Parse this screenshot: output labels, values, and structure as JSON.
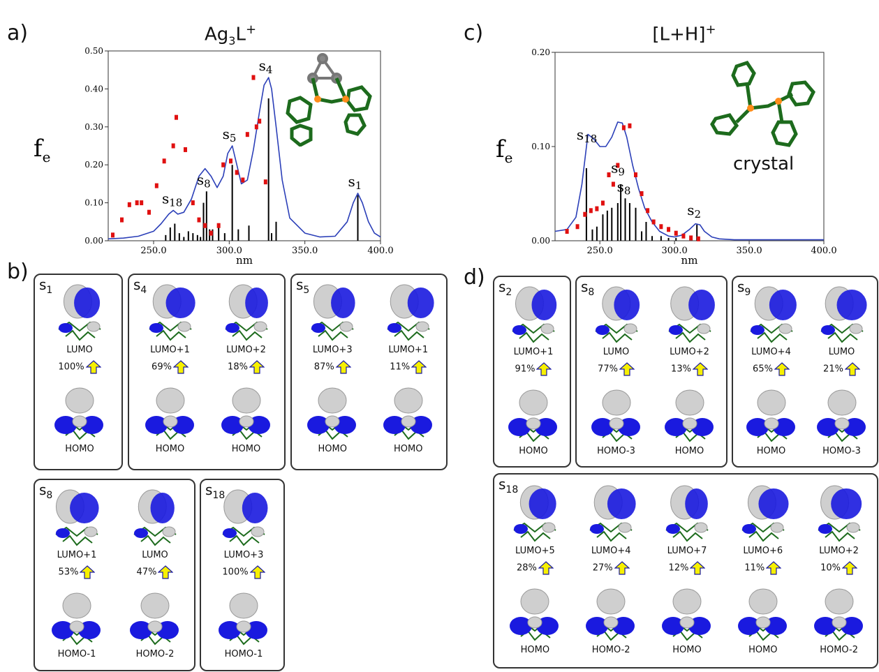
{
  "colors": {
    "curve": "#2b3fb8",
    "sticks": "#000000",
    "points": "#e01010",
    "lobe_blue": "#1a1adf",
    "lobe_gray": "#cfcfcf",
    "arrow": "#f7f000",
    "molecule": "#1d6b1d"
  },
  "panels": {
    "a": {
      "letter": "a)",
      "title": "Ag",
      "title_sub": "3",
      "title_rest": "L",
      "title_sup": "+"
    },
    "b": {
      "letter": "b)"
    },
    "c": {
      "letter": "c)",
      "title": "[L+H]",
      "title_sup": "+",
      "note": "crystal"
    },
    "d": {
      "letter": "d)"
    }
  },
  "chart_data": [
    {
      "type": "line",
      "title": "Ag3L+",
      "xlabel": "nm",
      "ylabel": "f",
      "ylabel_sub": "e",
      "xlim": [
        220,
        400
      ],
      "ylim": [
        0,
        0.5
      ],
      "xticks": [
        "250.0",
        "300.0",
        "350.0",
        "400.0"
      ],
      "xtick_values": [
        250,
        300,
        350,
        400
      ],
      "yticks": [
        "0.00",
        "0.10",
        "0.20",
        "0.30",
        "0.40",
        "0.50"
      ],
      "ytick_values": [
        0,
        0.1,
        0.2,
        0.3,
        0.4,
        0.5
      ],
      "series": [
        {
          "kind": "curve",
          "x": [
            220,
            230,
            240,
            250,
            255,
            260,
            263,
            266,
            270,
            275,
            280,
            284,
            288,
            292,
            296,
            299,
            302,
            305,
            308,
            312,
            316,
            320,
            323,
            326,
            328,
            331,
            335,
            340,
            350,
            360,
            370,
            378,
            382,
            385,
            388,
            392,
            396,
            400
          ],
          "y": [
            0.005,
            0.007,
            0.012,
            0.025,
            0.045,
            0.07,
            0.08,
            0.07,
            0.075,
            0.11,
            0.17,
            0.19,
            0.17,
            0.14,
            0.17,
            0.23,
            0.25,
            0.2,
            0.15,
            0.16,
            0.24,
            0.34,
            0.41,
            0.43,
            0.4,
            0.3,
            0.16,
            0.06,
            0.02,
            0.01,
            0.012,
            0.05,
            0.1,
            0.125,
            0.1,
            0.05,
            0.02,
            0.01
          ]
        },
        {
          "kind": "sticks",
          "x": [
            258,
            261,
            264,
            267,
            270,
            273,
            276,
            279,
            281,
            283,
            285,
            287,
            289,
            293,
            297,
            302,
            306,
            313,
            326,
            328,
            331,
            385
          ],
          "y": [
            0.015,
            0.035,
            0.045,
            0.02,
            0.01,
            0.025,
            0.02,
            0.015,
            0.01,
            0.1,
            0.13,
            0.03,
            0.03,
            0.045,
            0.02,
            0.2,
            0.03,
            0.04,
            0.375,
            0.02,
            0.05,
            0.12
          ]
        },
        {
          "kind": "points",
          "x": [
            223,
            229,
            234,
            239,
            242,
            247,
            252,
            257,
            263,
            265,
            271,
            276,
            280,
            284,
            288,
            293,
            296,
            301,
            305,
            309,
            312,
            316,
            318,
            320,
            324
          ],
          "y": [
            0.015,
            0.055,
            0.095,
            0.1,
            0.1,
            0.075,
            0.145,
            0.21,
            0.25,
            0.325,
            0.24,
            0.1,
            0.055,
            0.04,
            0.02,
            0.04,
            0.2,
            0.21,
            0.18,
            0.16,
            0.28,
            0.43,
            0.3,
            0.315,
            0.155
          ]
        }
      ],
      "annotations": [
        {
          "label": "S",
          "sub": "4",
          "x": 326,
          "y": 0.43
        },
        {
          "label": "S",
          "sub": "5",
          "x": 302,
          "y": 0.25
        },
        {
          "label": "S",
          "sub": "8",
          "x": 285,
          "y": 0.13
        },
        {
          "label": "S",
          "sub": "18",
          "x": 262,
          "y": 0.08
        },
        {
          "label": "S",
          "sub": "1",
          "x": 385,
          "y": 0.125
        }
      ]
    },
    {
      "type": "line",
      "title": "[L+H]+",
      "xlabel": "nm",
      "ylabel": "f",
      "ylabel_sub": "e",
      "xlim": [
        220,
        400
      ],
      "ylim": [
        0,
        0.2
      ],
      "xticks": [
        "250.0",
        "300.0",
        "350.0",
        "400.0"
      ],
      "xtick_values": [
        250,
        300,
        350,
        400
      ],
      "yticks": [
        "0.00",
        "0.10",
        "0.20"
      ],
      "ytick_values": [
        0,
        0.1,
        0.2
      ],
      "series": [
        {
          "kind": "curve",
          "x": [
            220,
            228,
            234,
            238,
            242,
            246,
            250,
            254,
            258,
            262,
            265,
            268,
            272,
            276,
            280,
            285,
            290,
            296,
            300,
            305,
            310,
            314,
            317,
            320,
            325,
            330,
            340,
            350,
            360,
            380,
            400
          ],
          "y": [
            0.01,
            0.012,
            0.025,
            0.06,
            0.113,
            0.108,
            0.1,
            0.1,
            0.11,
            0.126,
            0.125,
            0.11,
            0.08,
            0.055,
            0.035,
            0.02,
            0.01,
            0.005,
            0.004,
            0.006,
            0.012,
            0.018,
            0.017,
            0.01,
            0.004,
            0.002,
            0.001,
            0.001,
            0.001,
            0.001,
            0.001
          ]
        },
        {
          "kind": "sticks",
          "x": [
            241,
            245,
            248,
            252,
            255,
            258,
            262,
            264,
            267,
            270,
            274,
            278,
            281,
            285,
            291,
            296,
            301,
            315
          ],
          "y": [
            0.077,
            0.012,
            0.015,
            0.028,
            0.032,
            0.035,
            0.04,
            0.06,
            0.045,
            0.04,
            0.035,
            0.01,
            0.02,
            0.005,
            0.005,
            0.003,
            0.003,
            0.017
          ]
        },
        {
          "kind": "points",
          "x": [
            228,
            235,
            240,
            244,
            248,
            252,
            256,
            259,
            262,
            266,
            270,
            274,
            278,
            282,
            286,
            291,
            296,
            301,
            306,
            311,
            316
          ],
          "y": [
            0.01,
            0.015,
            0.028,
            0.032,
            0.034,
            0.04,
            0.07,
            0.06,
            0.08,
            0.12,
            0.122,
            0.07,
            0.05,
            0.032,
            0.02,
            0.015,
            0.012,
            0.008,
            0.005,
            0.003,
            0.002
          ]
        }
      ],
      "annotations": [
        {
          "label": "S",
          "sub": "18",
          "x": 241,
          "y": 0.1
        },
        {
          "label": "S",
          "sub": "9",
          "x": 264,
          "y": 0.065
        },
        {
          "label": "S",
          "sub": "8",
          "x": 268,
          "y": 0.045
        },
        {
          "label": "S",
          "sub": "2",
          "x": 315,
          "y": 0.02
        }
      ]
    }
  ],
  "b_boxes": [
    {
      "state": "S",
      "sub": "1",
      "items": [
        {
          "upper": "LUMO",
          "pct": "100%",
          "lower": "HOMO"
        }
      ]
    },
    {
      "state": "S",
      "sub": "4",
      "items": [
        {
          "upper": "LUMO+1",
          "pct": "69%",
          "lower": "HOMO"
        },
        {
          "upper": "LUMO+2",
          "pct": "18%",
          "lower": "HOMO"
        }
      ]
    },
    {
      "state": "S",
      "sub": "5",
      "items": [
        {
          "upper": "LUMO+3",
          "pct": "87%",
          "lower": "HOMO"
        },
        {
          "upper": "LUMO+1",
          "pct": "11%",
          "lower": "HOMO"
        }
      ]
    },
    {
      "state": "S",
      "sub": "8",
      "items": [
        {
          "upper": "LUMO+1",
          "pct": "53%",
          "lower": "HOMO-1"
        },
        {
          "upper": "LUMO",
          "pct": "47%",
          "lower": "HOMO-2"
        }
      ]
    },
    {
      "state": "S",
      "sub": "18",
      "items": [
        {
          "upper": "LUMO+3",
          "pct": "100%",
          "lower": "HOMO-1"
        }
      ]
    }
  ],
  "d_boxes": [
    {
      "state": "S",
      "sub": "2",
      "items": [
        {
          "upper": "LUMO+1",
          "pct": "91%",
          "lower": "HOMO"
        }
      ]
    },
    {
      "state": "S",
      "sub": "8",
      "items": [
        {
          "upper": "LUMO",
          "pct": "77%",
          "lower": "HOMO-3"
        },
        {
          "upper": "LUMO+2",
          "pct": "13%",
          "lower": "HOMO"
        }
      ]
    },
    {
      "state": "S",
      "sub": "9",
      "items": [
        {
          "upper": "LUMO+4",
          "pct": "65%",
          "lower": "HOMO"
        },
        {
          "upper": "LUMO",
          "pct": "21%",
          "lower": "HOMO-3"
        }
      ]
    },
    {
      "state": "S",
      "sub": "18",
      "items": [
        {
          "upper": "LUMO+5",
          "pct": "28%",
          "lower": "HOMO"
        },
        {
          "upper": "LUMO+4",
          "pct": "27%",
          "lower": "HOMO-2"
        },
        {
          "upper": "LUMO+7",
          "pct": "12%",
          "lower": "HOMO"
        },
        {
          "upper": "LUMO+6",
          "pct": "11%",
          "lower": "HOMO"
        },
        {
          "upper": "LUMO+2",
          "pct": "10%",
          "lower": "HOMO-2"
        }
      ]
    }
  ]
}
